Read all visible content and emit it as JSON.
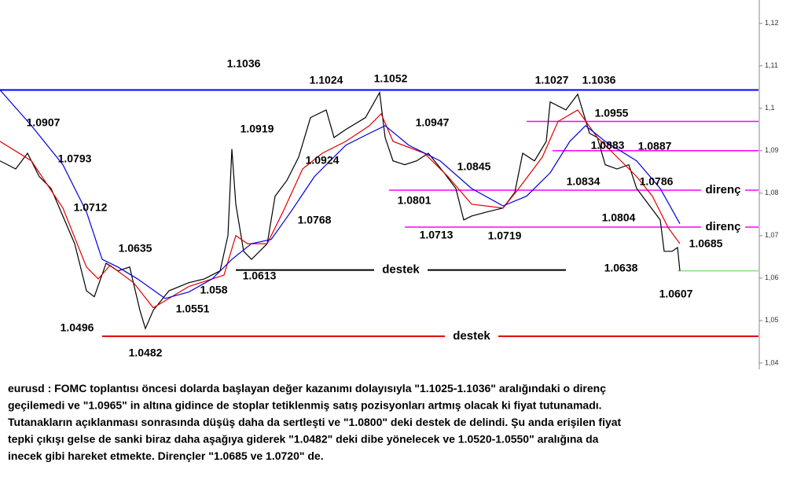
{
  "chart_data": {
    "type": "line",
    "xlim": [
      0,
      965
    ],
    "ylim": [
      1.0385,
      1.1255
    ],
    "yticks": [
      {
        "value": 1.04,
        "label": "1,04"
      },
      {
        "value": 1.05,
        "label": "1,05"
      },
      {
        "value": 1.06,
        "label": "1,06"
      },
      {
        "value": 1.07,
        "label": "1,07"
      },
      {
        "value": 1.08,
        "label": "1,08"
      },
      {
        "value": 1.09,
        "label": "1,09"
      },
      {
        "value": 1.1,
        "label": "1,1"
      },
      {
        "value": 1.11,
        "label": "1,11"
      },
      {
        "value": 1.12,
        "label": "1,12"
      }
    ],
    "series": [
      {
        "color": "#000000",
        "x": [
          0,
          20,
          35,
          50,
          65,
          80,
          95,
          110,
          120,
          135,
          150,
          165,
          178,
          185,
          195,
          215,
          240,
          260,
          280,
          290,
          295,
          300,
          310,
          320,
          340,
          350,
          365,
          380,
          395,
          415,
          425,
          440,
          465,
          483,
          490,
          500,
          515,
          530,
          545,
          565,
          580,
          590,
          600,
          620,
          640,
          655,
          665,
          680,
          695,
          700,
          720,
          735,
          750,
          760,
          770,
          785,
          800,
          810,
          825,
          840,
          845,
          855,
          862,
          865
        ],
        "values": [
          1.0876,
          1.0857,
          1.0894,
          1.0839,
          1.0811,
          1.0746,
          1.0681,
          1.057,
          1.0556,
          1.0635,
          1.0617,
          1.0626,
          1.0524,
          1.0481,
          1.0524,
          1.057,
          1.0589,
          1.0598,
          1.0617,
          1.07,
          1.0904,
          1.0774,
          1.0663,
          1.0644,
          1.0681,
          1.0793,
          1.083,
          1.0885,
          1.0978,
          1.0996,
          1.0931,
          1.095,
          1.0978,
          1.1037,
          1.0931,
          1.0876,
          1.0867,
          1.0876,
          1.0894,
          1.0848,
          1.0811,
          1.0737,
          1.0746,
          1.0756,
          1.0765,
          1.0802,
          1.0894,
          1.0876,
          1.0922,
          1.1015,
          1.0996,
          1.1033,
          1.0941,
          1.0931,
          1.0867,
          1.0857,
          1.0867,
          1.0811,
          1.0774,
          1.0737,
          1.0663,
          1.0663,
          1.0672,
          1.0617
        ]
      },
      {
        "color": "#e00000",
        "x": [
          0,
          40,
          80,
          110,
          125,
          140,
          170,
          195,
          215,
          240,
          270,
          285,
          300,
          315,
          340,
          360,
          385,
          410,
          440,
          470,
          485,
          500,
          540,
          570,
          600,
          640,
          660,
          690,
          710,
          735,
          760,
          790,
          810,
          830,
          850,
          865
        ],
        "values": [
          1.0922,
          1.0876,
          1.0765,
          1.0626,
          1.0598,
          1.063,
          1.0589,
          1.053,
          1.0552,
          1.058,
          1.0598,
          1.0607,
          1.07,
          1.0681,
          1.0681,
          1.0756,
          1.0857,
          1.0894,
          1.0922,
          1.0959,
          1.0987,
          1.0922,
          1.0894,
          1.0839,
          1.0774,
          1.0765,
          1.0811,
          1.0885,
          1.0969,
          1.0996,
          1.0931,
          1.0876,
          1.0839,
          1.0793,
          1.0719,
          1.0681
        ]
      },
      {
        "color": "#0000e0",
        "x": [
          0,
          40,
          80,
          110,
          130,
          150,
          175,
          210,
          240,
          270,
          295,
          320,
          345,
          370,
          400,
          440,
          470,
          490,
          520,
          560,
          600,
          640,
          670,
          700,
          725,
          745,
          770,
          810,
          840,
          865
        ],
        "values": [
          1.1043,
          1.0959,
          1.0867,
          1.0756,
          1.0644,
          1.0626,
          1.0598,
          1.0552,
          1.0567,
          1.0598,
          1.0644,
          1.0681,
          1.0691,
          1.0756,
          1.0839,
          1.0913,
          1.0941,
          1.0959,
          1.0913,
          1.0876,
          1.0811,
          1.077,
          1.0793,
          1.0848,
          1.0922,
          1.0959,
          1.0922,
          1.0876,
          1.0811,
          1.0728
        ]
      }
    ],
    "levels": [
      {
        "value": 1.1043,
        "x": [
          0,
          965
        ],
        "color": "#0000ff"
      },
      {
        "value": 1.0969,
        "x": [
          670,
          965
        ],
        "color": "#ff00ff"
      },
      {
        "value": 1.09,
        "x": [
          703,
          965
        ],
        "color": "#ff00ff"
      },
      {
        "value": 1.0807,
        "x": [
          495,
          965
        ],
        "color": "#ff00ff",
        "label": "direnç"
      },
      {
        "value": 1.072,
        "x": [
          515,
          965
        ],
        "color": "#ff00ff",
        "label": "direnç"
      },
      {
        "value": 1.0619,
        "x": [
          300,
          720
        ],
        "color": "#000000",
        "label": "destek"
      },
      {
        "value": 1.0463,
        "x": [
          130,
          965
        ],
        "color": "#dd0000",
        "label": "destek"
      },
      {
        "value": 1.0617,
        "x": [
          862,
          965
        ],
        "color": "#88dd88"
      }
    ],
    "annotations": [
      1.1036,
      1.0907,
      1.0793,
      1.0712,
      1.0635,
      1.0496,
      1.0482,
      1.0551,
      1.058,
      1.0613,
      1.0919,
      1.0768,
      1.0924,
      1.1024,
      1.1052,
      1.0947,
      1.0845,
      1.0801,
      1.0713,
      1.0719,
      1.1027,
      1.1036,
      1.0955,
      1.0883,
      1.0887,
      1.0834,
      1.0786,
      1.0804,
      1.0685,
      1.0638,
      1.0607
    ],
    "caption_lines": [
      "eurusd : FOMC toplantısı öncesi dolarda başlayan değer kazanımı dolayısıyla \"1.1025-1.1036\" aralığındaki o direnç",
      "geçilemedi ve \"1.0965\" in altına gidince de stoplar tetiklenmiş satış pozisyonları artmış olacak ki fiyat tutunamadı.",
      "Tutanakların açıklanması sonrasında düşüş daha da sertleşti ve \"1.0800\" deki destek de delindi. Şu anda erişilen fiyat",
      "tepki çıkışı gelse de sanki biraz daha aşağıya giderek \"1.0482\" deki dibe yönelecek ve 1.0520-1.0550\" aralığına da",
      "inecek gibi hareket etmekte. Dirençler \"1.0685 ve 1.0720\" de."
    ]
  }
}
